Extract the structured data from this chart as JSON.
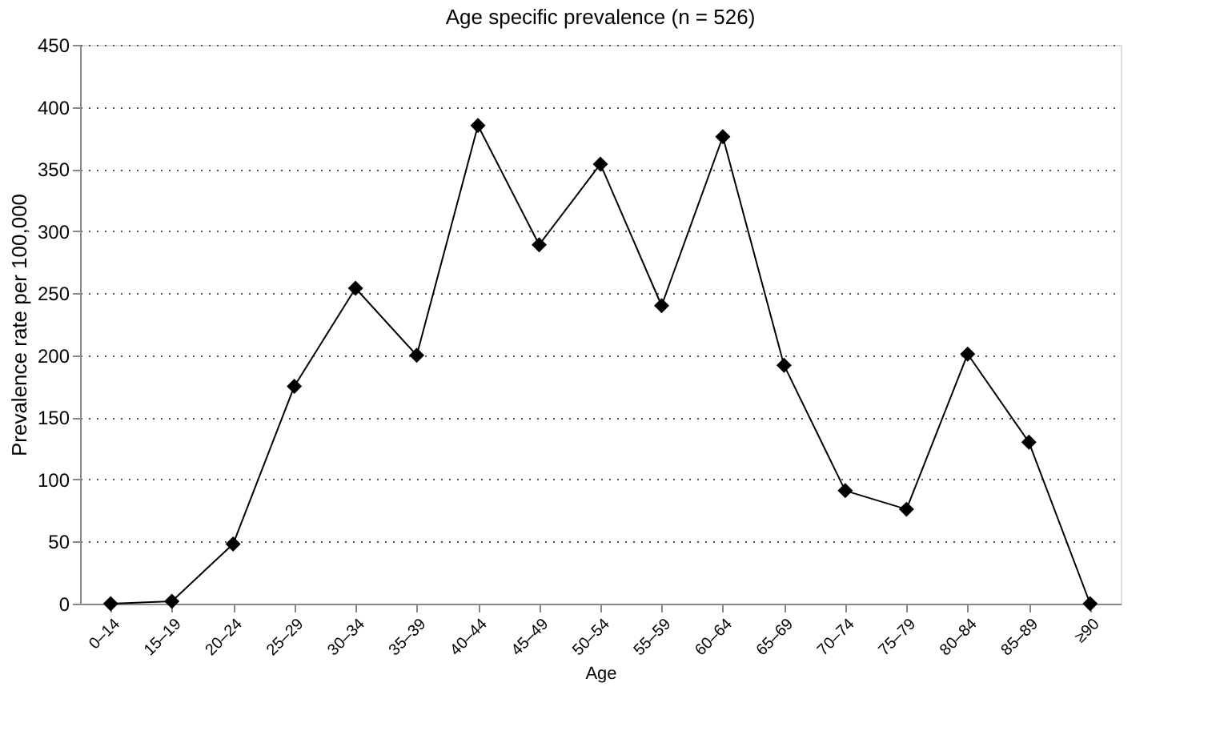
{
  "chart_data": {
    "type": "line",
    "title": "Age specific prevalence (n = 526)",
    "xlabel": "Age",
    "ylabel": "Prevalence rate per 100,000",
    "categories": [
      "0–14",
      "15–19",
      "20–24",
      "25–29",
      "30–34",
      "35–39",
      "40–44",
      "45–49",
      "50–54",
      "55–59",
      "60–64",
      "65–69",
      "70–74",
      "75–79",
      "80–84",
      "85–89",
      "≥90"
    ],
    "series": [
      {
        "color": "#000000",
        "values": [
          0,
          2,
          48,
          175,
          254,
          200,
          385,
          289,
          354,
          240,
          376,
          192,
          91,
          76,
          201,
          130,
          0
        ]
      }
    ],
    "ylim": [
      0,
      450
    ],
    "yticks": [
      0,
      50,
      100,
      150,
      200,
      250,
      300,
      350,
      400,
      450
    ],
    "grid": "y",
    "marker": "diamond",
    "line_style": "solid",
    "legend": false
  }
}
